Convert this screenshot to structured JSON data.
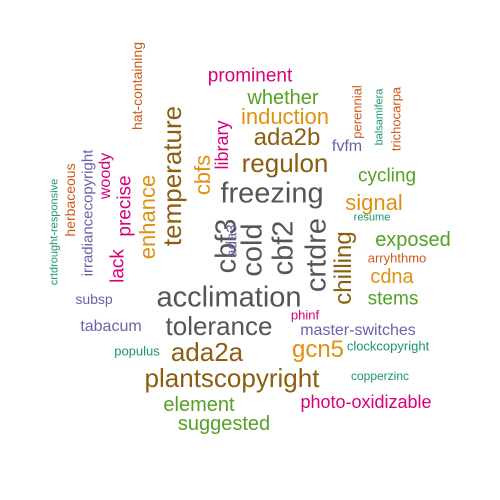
{
  "palette": {
    "gray": "#555555",
    "brown": "#8B5E10",
    "orange": "#E09010",
    "pink": "#D6007A",
    "green": "#55A025",
    "purple": "#6B62A8",
    "teal": "#19966F",
    "rust": "#CC5A1A"
  },
  "words": [
    {
      "text": "acclimation",
      "color": "gray"
    },
    {
      "text": "freezing",
      "color": "gray"
    },
    {
      "text": "cold",
      "color": "gray"
    },
    {
      "text": "cbf3",
      "color": "gray"
    },
    {
      "text": "cbf2",
      "color": "gray"
    },
    {
      "text": "crtdre",
      "color": "gray"
    },
    {
      "text": "tolerance",
      "color": "gray"
    },
    {
      "text": "ada2a",
      "color": "brown"
    },
    {
      "text": "plantscopyright",
      "color": "brown"
    },
    {
      "text": "regulon",
      "color": "brown"
    },
    {
      "text": "temperature",
      "color": "brown"
    },
    {
      "text": "ada2b",
      "color": "brown"
    },
    {
      "text": "chilling",
      "color": "brown"
    },
    {
      "text": "induction",
      "color": "orange"
    },
    {
      "text": "gcn5",
      "color": "orange"
    },
    {
      "text": "signal",
      "color": "orange"
    },
    {
      "text": "enhance",
      "color": "orange"
    },
    {
      "text": "cbfs",
      "color": "orange"
    },
    {
      "text": "cdna",
      "color": "orange"
    },
    {
      "text": "whether",
      "color": "green"
    },
    {
      "text": "exposed",
      "color": "green"
    },
    {
      "text": "element",
      "color": "green"
    },
    {
      "text": "suggested",
      "color": "green"
    },
    {
      "text": "cycling",
      "color": "green"
    },
    {
      "text": "stems",
      "color": "green"
    },
    {
      "text": "prominent",
      "color": "pink"
    },
    {
      "text": "library",
      "color": "pink"
    },
    {
      "text": "precise",
      "color": "pink"
    },
    {
      "text": "lack",
      "color": "pink"
    },
    {
      "text": "photo-oxidizable",
      "color": "pink"
    },
    {
      "text": "phinf",
      "color": "pink"
    },
    {
      "text": "woody",
      "color": "pink"
    },
    {
      "text": "tabacum",
      "color": "purple"
    },
    {
      "text": "master-switches",
      "color": "purple"
    },
    {
      "text": "fvfm",
      "color": "purple"
    },
    {
      "text": "ada3",
      "color": "purple"
    },
    {
      "text": "irradiancecopyright",
      "color": "purple"
    },
    {
      "text": "subsp",
      "color": "purple"
    },
    {
      "text": "populus",
      "color": "teal"
    },
    {
      "text": "clockcopyright",
      "color": "teal"
    },
    {
      "text": "copperzinc",
      "color": "teal"
    },
    {
      "text": "resume",
      "color": "teal"
    },
    {
      "text": "balsamifera",
      "color": "teal"
    },
    {
      "text": "crtdrought-responsive",
      "color": "teal"
    },
    {
      "text": "perennial",
      "color": "rust"
    },
    {
      "text": "trichocarpa",
      "color": "rust"
    },
    {
      "text": "hat-containing",
      "color": "rust"
    },
    {
      "text": "herbaceous",
      "color": "rust"
    },
    {
      "text": "arryhthmo",
      "color": "rust"
    }
  ]
}
